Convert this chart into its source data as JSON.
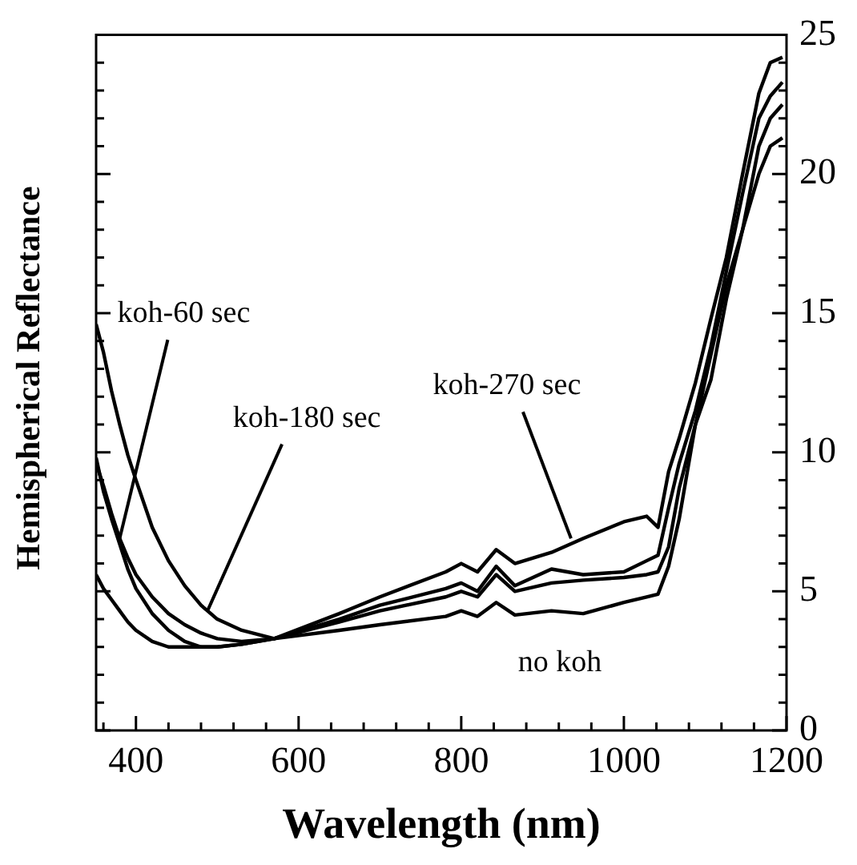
{
  "chart_data": {
    "type": "line",
    "xlabel": "Wavelength (nm)",
    "ylabel": "Hemispherical Reflectance",
    "x": [
      351,
      360,
      370,
      380,
      390,
      400,
      420,
      440,
      460,
      480,
      500,
      530,
      570,
      650,
      700,
      781,
      800,
      820,
      843,
      866,
      911,
      950,
      1000,
      1028,
      1042,
      1055,
      1068,
      1088,
      1107,
      1126,
      1146,
      1166,
      1180,
      1195
    ],
    "series": [
      {
        "color": "#000000",
        "values": [
          5.6,
          5.1,
          4.7,
          4.3,
          3.9,
          3.6,
          3.2,
          3.0,
          3.0,
          3.0,
          3.0,
          3.1,
          3.3,
          3.6,
          3.8,
          4.1,
          4.3,
          4.1,
          4.6,
          4.15,
          4.3,
          4.2,
          4.6,
          4.8,
          4.9,
          5.9,
          7.6,
          11.0,
          13.5,
          16.0,
          18.0,
          20.0,
          21.0,
          21.3
        ]
      },
      {
        "color": "#000000",
        "values": [
          9.6,
          8.8,
          7.8,
          6.9,
          6.2,
          5.6,
          4.8,
          4.2,
          3.8,
          3.5,
          3.3,
          3.2,
          3.3,
          3.9,
          4.3,
          4.8,
          5.0,
          4.8,
          5.6,
          5.0,
          5.3,
          5.4,
          5.5,
          5.6,
          5.7,
          6.6,
          8.7,
          11.0,
          12.6,
          15.5,
          18.0,
          21.0,
          22.0,
          22.5
        ]
      },
      {
        "color": "#000000",
        "values": [
          14.6,
          13.6,
          12.2,
          11.0,
          9.9,
          9.0,
          7.3,
          6.1,
          5.2,
          4.5,
          4.0,
          3.6,
          3.3,
          4.0,
          4.5,
          5.1,
          5.3,
          5.0,
          5.9,
          5.2,
          5.8,
          5.6,
          5.7,
          6.1,
          6.3,
          8.0,
          9.6,
          11.5,
          13.8,
          16.5,
          19.3,
          22.0,
          22.8,
          23.3
        ]
      },
      {
        "color": "#000000",
        "values": [
          9.8,
          8.6,
          7.6,
          6.7,
          5.8,
          5.1,
          4.2,
          3.6,
          3.2,
          3.0,
          3.0,
          3.1,
          3.3,
          4.2,
          4.8,
          5.7,
          6.0,
          5.7,
          6.5,
          6.0,
          6.4,
          6.9,
          7.5,
          7.7,
          7.3,
          9.3,
          10.5,
          12.5,
          14.8,
          17.0,
          20.0,
          22.9,
          24.0,
          24.2
        ]
      }
    ],
    "xlim": [
      351,
      1200
    ],
    "xticks": [
      {
        "value": 360,
        "label": null
      },
      400,
      {
        "value": 440,
        "label": null
      },
      {
        "value": 480,
        "label": null
      },
      {
        "value": 520,
        "label": null
      },
      {
        "value": 560,
        "label": null
      },
      600,
      {
        "value": 640,
        "label": null
      },
      {
        "value": 680,
        "label": null
      },
      {
        "value": 720,
        "label": null
      },
      {
        "value": 760,
        "label": null
      },
      800,
      {
        "value": 840,
        "label": null
      },
      {
        "value": 880,
        "label": null
      },
      {
        "value": 920,
        "label": null
      },
      {
        "value": 960,
        "label": null
      },
      1000,
      {
        "value": 1040,
        "label": null
      },
      {
        "value": 1080,
        "label": null
      },
      {
        "value": 1120,
        "label": null
      },
      {
        "value": 1160,
        "label": null
      },
      1200
    ],
    "ylim": [
      0,
      25
    ],
    "yticks": [
      0,
      {
        "value": 1,
        "label": null
      },
      {
        "value": 2,
        "label": null
      },
      {
        "value": 3,
        "label": null
      },
      {
        "value": 4,
        "label": null
      },
      5,
      {
        "value": 6,
        "label": null
      },
      {
        "value": 7,
        "label": null
      },
      {
        "value": 8,
        "label": null
      },
      {
        "value": 9,
        "label": null
      },
      10,
      {
        "value": 11,
        "label": null
      },
      {
        "value": 12,
        "label": null
      },
      {
        "value": 13,
        "label": null
      },
      {
        "value": 14,
        "label": null
      },
      15,
      {
        "value": 16,
        "label": null
      },
      {
        "value": 17,
        "label": null
      },
      {
        "value": 18,
        "label": null
      },
      {
        "value": 19,
        "label": null
      },
      20,
      {
        "value": 21,
        "label": null
      },
      {
        "value": 22,
        "label": null
      },
      {
        "value": 23,
        "label": null
      },
      {
        "value": 24,
        "label": null
      },
      25
    ],
    "grid": false,
    "legend": false,
    "marker": "none",
    "line_style": "solid",
    "annotations": [
      {
        "text": "koh-60 sec",
        "x": 380,
        "y": 6.9
      },
      {
        "text": "koh-180 sec",
        "x": 488,
        "y": 4.3
      },
      {
        "text": "koh-270 sec",
        "x": 935,
        "y": 6.9
      },
      {
        "text": "no koh",
        "x": 1000,
        "y": 4.6
      }
    ]
  }
}
